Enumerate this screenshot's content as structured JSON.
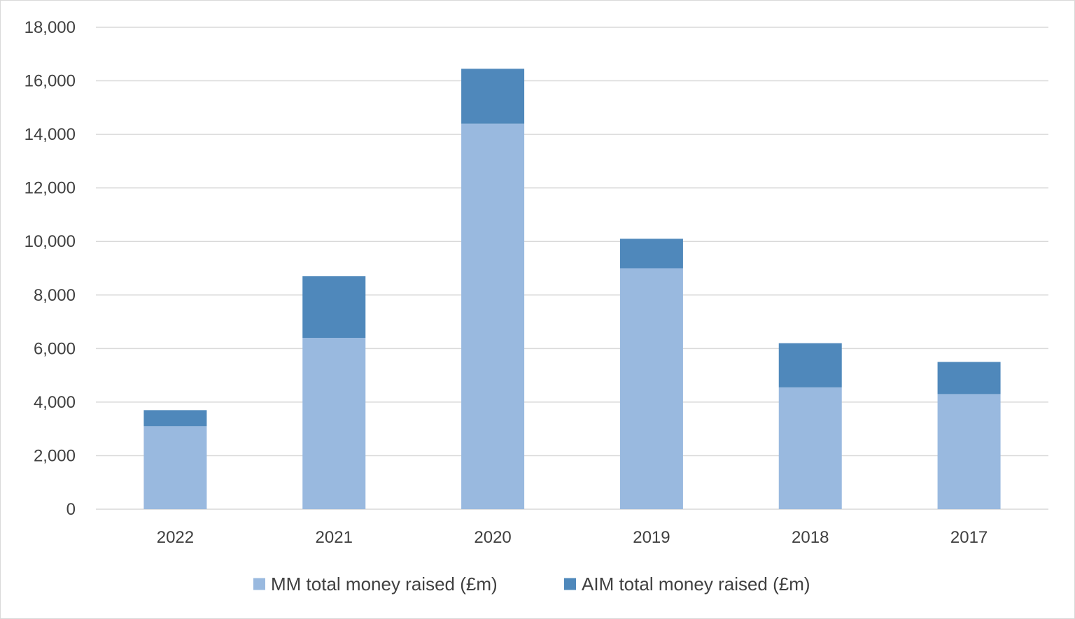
{
  "chart_data": {
    "type": "bar",
    "stacked": true,
    "categories": [
      "2022",
      "2021",
      "2020",
      "2019",
      "2018",
      "2017"
    ],
    "series": [
      {
        "name": "MM total money raised (£m)",
        "color": "#99b9df",
        "values": [
          3100,
          6400,
          14400,
          9000,
          4550,
          4300
        ]
      },
      {
        "name": "AIM total money raised (£m)",
        "color": "#4f88bb",
        "values": [
          600,
          2300,
          2050,
          1100,
          1650,
          1200
        ]
      }
    ],
    "ylim": [
      0,
      18000
    ],
    "yticks": [
      0,
      2000,
      4000,
      6000,
      8000,
      10000,
      12000,
      14000,
      16000,
      18000
    ],
    "ytick_labels": [
      "0",
      "2,000",
      "4,000",
      "6,000",
      "8,000",
      "10,000",
      "12,000",
      "14,000",
      "16,000",
      "18,000"
    ],
    "grid": true,
    "legend_position": "bottom"
  }
}
